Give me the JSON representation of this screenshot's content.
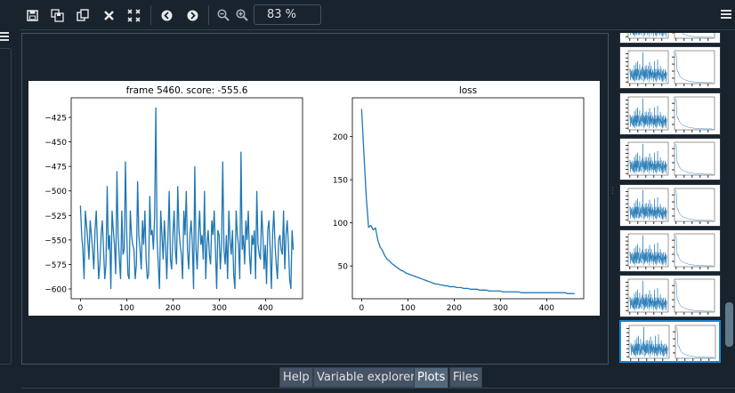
{
  "toolbar": {
    "buttons": [
      {
        "name": "save-plot-icon",
        "glyph": "💾"
      },
      {
        "name": "save-all-plots-icon",
        "glyph": "▤"
      },
      {
        "name": "copy-plot-icon",
        "glyph": "⧉"
      },
      {
        "name": "remove-plot-icon",
        "glyph": "✖"
      },
      {
        "name": "remove-all-plots-icon",
        "glyph": "⤧"
      },
      {
        "name": "previous-plot-icon",
        "glyph": "◀"
      },
      {
        "name": "next-plot-icon",
        "glyph": "▶"
      },
      {
        "name": "zoom-out-icon",
        "glyph": "−"
      },
      {
        "name": "zoom-in-icon",
        "glyph": "+"
      }
    ],
    "zoom_value": "83 %"
  },
  "tabs": [
    {
      "label": "Help",
      "active": false
    },
    {
      "label": "Variable explorer",
      "active": false
    },
    {
      "label": "Plots",
      "active": true
    },
    {
      "label": "Files",
      "active": false
    }
  ],
  "colors": {
    "background": "#19232d",
    "line": "#1f77b4",
    "selected_border": "#1a89d8"
  },
  "chart_data": [
    {
      "type": "line",
      "title": "frame 5460. score: -555.6",
      "xlabel": "",
      "ylabel": "",
      "xlim": [
        -20,
        480
      ],
      "ylim": [
        -610,
        -405
      ],
      "xticks": [
        0,
        100,
        200,
        300,
        400
      ],
      "yticks": [
        -600,
        -575,
        -550,
        -525,
        -500,
        -475,
        -450,
        -425
      ],
      "series": [
        {
          "values_note_free": true,
          "x_start": 0,
          "x_end": 460,
          "values": [
            -515,
            -545,
            -560,
            -590,
            -520,
            -535,
            -550,
            -570,
            -530,
            -545,
            -560,
            -580,
            -540,
            -520,
            -555,
            -590,
            -575,
            -545,
            -530,
            -560,
            -590,
            -575,
            -495,
            -560,
            -545,
            -600,
            -520,
            -540,
            -555,
            -585,
            -480,
            -545,
            -570,
            -590,
            -520,
            -565,
            -560,
            -470,
            -540,
            -585,
            -590,
            -520,
            -545,
            -555,
            -560,
            -590,
            -575,
            -490,
            -545,
            -560,
            -580,
            -530,
            -555,
            -520,
            -570,
            -590,
            -585,
            -505,
            -545,
            -540,
            -560,
            -525,
            -415,
            -550,
            -575,
            -600,
            -520,
            -545,
            -570,
            -530,
            -555,
            -590,
            -545,
            -500,
            -570,
            -580,
            -545,
            -520,
            -560,
            -575,
            -495,
            -540,
            -555,
            -565,
            -590,
            -520,
            -545,
            -500,
            -560,
            -580,
            -545,
            -530,
            -555,
            -600,
            -475,
            -560,
            -580,
            -545,
            -520,
            -555,
            -545,
            -570,
            -500,
            -590,
            -555,
            -540,
            -565,
            -575,
            -530,
            -545,
            -520,
            -560,
            -600,
            -540,
            -545,
            -580,
            -555,
            -470,
            -560,
            -575,
            -545,
            -590,
            -520,
            -550,
            -565,
            -540,
            -585,
            -600,
            -520,
            -545,
            -555,
            -590,
            -460,
            -560,
            -545,
            -575,
            -530,
            -550,
            -520,
            -565,
            -585,
            -545,
            -555,
            -540,
            -590,
            -500,
            -555,
            -565,
            -570,
            -520,
            -545,
            -580,
            -555,
            -595,
            -540,
            -530,
            -560,
            -600,
            -545,
            -520,
            -555,
            -575,
            -590,
            -550,
            -545,
            -560,
            -565,
            -520,
            -580,
            -545,
            -530,
            -555,
            -590,
            -600,
            -540,
            -560
          ]
        }
      ]
    },
    {
      "type": "line",
      "title": "loss",
      "xlabel": "",
      "ylabel": "",
      "xlim": [
        -20,
        480
      ],
      "ylim": [
        12,
        245
      ],
      "xticks": [
        0,
        100,
        200,
        300,
        400
      ],
      "yticks": [
        50,
        100,
        150,
        200
      ],
      "series": [
        {
          "x_start": 0,
          "x_end": 460,
          "values": [
            232,
            180,
            130,
            95,
            97,
            92,
            94,
            80,
            72,
            68,
            62,
            58,
            56,
            53,
            51,
            49,
            47,
            45,
            44,
            42,
            41,
            40,
            39,
            38,
            37,
            36,
            35,
            34,
            33,
            32,
            31,
            30,
            29,
            29,
            28,
            28,
            27,
            27,
            26,
            26,
            26,
            25,
            25,
            25,
            24,
            24,
            24,
            23,
            23,
            23,
            23,
            22,
            22,
            22,
            22,
            21,
            21,
            21,
            21,
            21,
            21,
            20,
            20,
            20,
            20,
            20,
            20,
            20,
            20,
            19,
            19,
            19,
            19,
            19,
            19,
            19,
            19,
            19,
            19,
            19,
            19,
            19,
            19,
            19,
            19,
            19,
            19,
            19,
            19,
            18,
            18,
            18,
            18
          ]
        }
      ]
    }
  ],
  "thumbnails_count": 8
}
